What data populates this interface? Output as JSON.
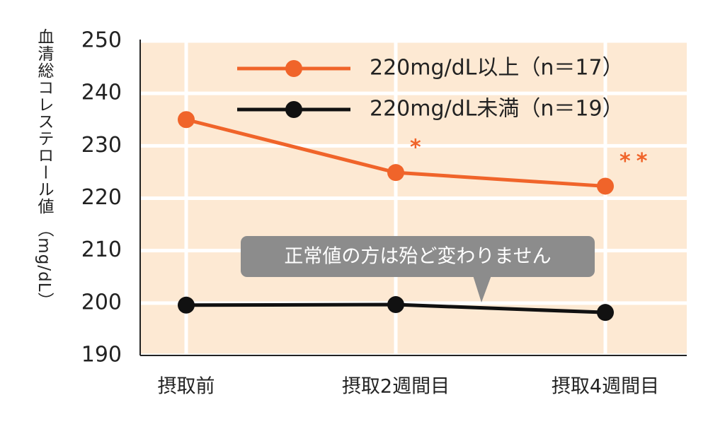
{
  "chart_data": {
    "type": "line",
    "y_label": "血清総コレステロール値 （mg/dL）",
    "categories": [
      "摂取前",
      "摂取2週間目",
      "摂取4週間目"
    ],
    "series": [
      {
        "name": "220mg/dL以上（n＝17）",
        "color": "#f0642a",
        "values": [
          235,
          224.9,
          222.3
        ],
        "value_annotations": [
          null,
          "*",
          "**"
        ]
      },
      {
        "name": "220mg/dL未満（n＝19）",
        "color": "#111111",
        "values": [
          199.6,
          199.7,
          198.2
        ]
      }
    ],
    "ylim": [
      190,
      250
    ],
    "yticks": [
      190,
      200,
      210,
      220,
      230,
      240,
      250
    ],
    "grid": true,
    "background": "#fde9d3",
    "callout": "正常値の方は殆ど変わりません"
  }
}
